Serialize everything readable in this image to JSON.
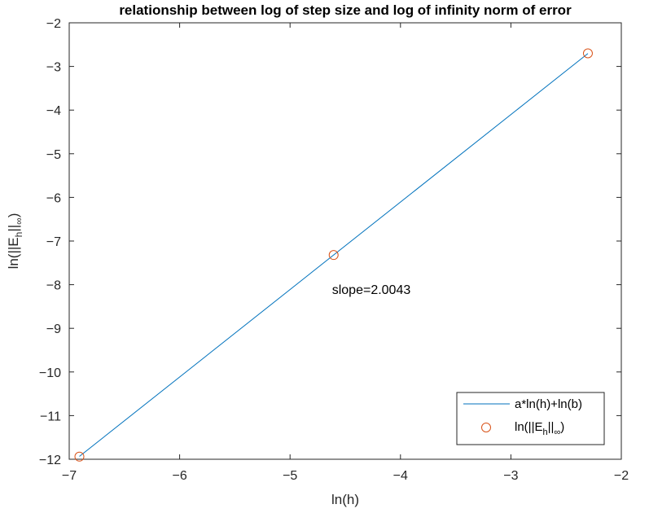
{
  "chart_data": {
    "type": "line",
    "title": "relationship between log of step size and log of infinity norm of error",
    "xlabel": "ln(h)",
    "ylabel": {
      "base": "ln(||E",
      "sub": "h",
      "mid": "||",
      "sub2": "∞",
      "end": ")"
    },
    "xlim": [
      -7,
      -2
    ],
    "ylim": [
      -12,
      -2
    ],
    "xticks": [
      -7,
      -6,
      -5,
      -4,
      -3,
      -2
    ],
    "yticks": [
      -2,
      -3,
      -4,
      -5,
      -6,
      -7,
      -8,
      -9,
      -10,
      -11,
      -12
    ],
    "grid": false,
    "legend_position": "bottom-right",
    "series": [
      {
        "name": "a*ln(h)+ln(b)",
        "kind": "line",
        "color": "#0072BD",
        "x": [
          -6.9078,
          -2.3026
        ],
        "y": [
          -11.935,
          -2.705
        ]
      },
      {
        "name": {
          "base": "ln(||E",
          "sub": "h",
          "mid": "||",
          "sub2": "∞",
          "end": ")"
        },
        "kind": "marker",
        "marker": "circle",
        "color": "#D95319",
        "x": [
          -6.9078,
          -4.6052,
          -2.3026
        ],
        "y": [
          -11.94,
          -7.32,
          -2.7
        ]
      }
    ],
    "annotations": [
      {
        "text": "slope=2.0043",
        "x": -4.62,
        "y": -8.1
      }
    ]
  }
}
